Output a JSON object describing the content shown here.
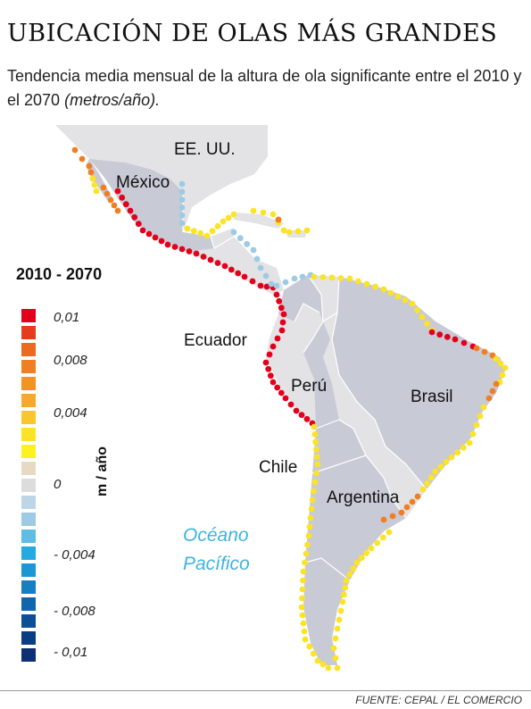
{
  "header": {
    "title": "UBICACIÓN DE OLAS MÁS GRANDES",
    "subtitle": "Tendencia media mensual de la altura de ola significante entre el 2010 y el 2070",
    "subtitle_unit": "(metros/año)."
  },
  "legend": {
    "title": "2010 - 2070",
    "axis_label": "m / año",
    "colors": [
      "#e3001b",
      "#e63b1c",
      "#ec6a1f",
      "#ef7f22",
      "#f39226",
      "#f7a92a",
      "#fbc62b",
      "#fde325",
      "#fdf21f",
      "#e7d9c3",
      "#dcdcdc",
      "#bcd6e7",
      "#9dcbe5",
      "#5fbce4",
      "#24a9e1",
      "#1b97d4",
      "#157fc1",
      "#0f66ad",
      "#0b4f97",
      "#0a3e83",
      "#0d2f73"
    ],
    "tick_labels": [
      "0,01",
      "0,008",
      "0,004",
      "0",
      "- 0,004",
      "- 0,008",
      "- 0,01"
    ]
  },
  "map": {
    "labels": {
      "usa": "EE. UU.",
      "mexico": "México",
      "ecuador": "Ecuador",
      "peru": "Perú",
      "brasil": "Brasil",
      "chile": "Chile",
      "argentina": "Argentina",
      "ocean_line1": "Océano",
      "ocean_line2": "Pacífico"
    },
    "colors": {
      "land_highlight": "#c8cad6",
      "land_other": "#e3e3e6",
      "border": "#ffffff",
      "red": "#e3001b",
      "orange": "#ef7f22",
      "yellow": "#fde325",
      "light_blue": "#9dcbe5"
    }
  },
  "footer": {
    "source": "FUENTE: CEPAL / EL COMERCIO"
  }
}
